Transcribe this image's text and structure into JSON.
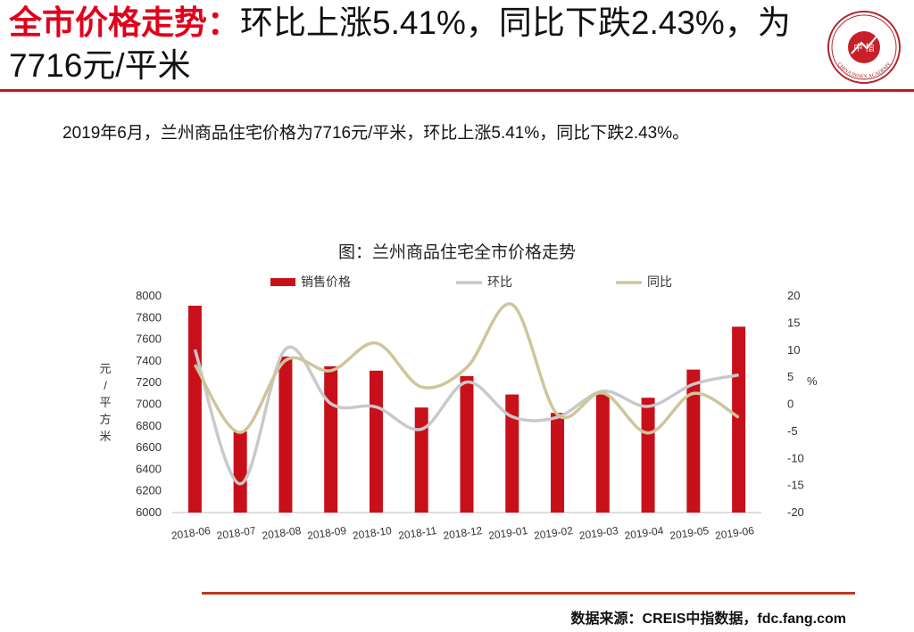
{
  "headline": {
    "red": "全市价格走势：",
    "black": "环比上涨5.41%，同比下跌2.43%，为7716元/平米"
  },
  "summary": "2019年6月，兰州商品住宅价格为7716元/平米，环比上涨5.41%，同比下跌2.43%。",
  "colors": {
    "accent": "#e0001b",
    "bar": "#c8101a",
    "mom_line": "#c9c9c9",
    "yoy_line": "#cfc59a",
    "rule": "#c4161c"
  },
  "chart_data": {
    "type": "bar",
    "title": "图：兰州商品住宅全市价格走势",
    "categories": [
      "2018-06",
      "2018-07",
      "2018-08",
      "2018-09",
      "2018-10",
      "2018-11",
      "2018-12",
      "2019-01",
      "2019-02",
      "2019-03",
      "2019-04",
      "2019-05",
      "2019-06"
    ],
    "series": [
      {
        "name": "销售价格",
        "kind": "bar",
        "axis": "left",
        "values": [
          7910,
          6750,
          7440,
          7350,
          7310,
          6970,
          7260,
          7090,
          6920,
          7090,
          7060,
          7320,
          7716
        ]
      },
      {
        "name": "环比",
        "kind": "line",
        "axis": "right",
        "values": [
          10.1,
          -14.7,
          10.2,
          0.1,
          -0.5,
          -4.6,
          4.1,
          -2.3,
          -2.4,
          2.4,
          -0.4,
          3.7,
          5.41
        ]
      },
      {
        "name": "同比",
        "kind": "line",
        "axis": "right",
        "values": [
          7.3,
          -5.2,
          8.1,
          6.2,
          11.3,
          3.2,
          6.8,
          18.4,
          -1.9,
          2.1,
          -5.3,
          2.0,
          -2.43
        ]
      }
    ],
    "ylabel": "元/平方米",
    "y2label": "%",
    "ylim": [
      6000,
      8000
    ],
    "y2lim": [
      -20,
      20
    ],
    "yticks": [
      "6000",
      "6200",
      "6400",
      "6600",
      "6800",
      "7000",
      "7200",
      "7400",
      "7600",
      "7800",
      "8000"
    ],
    "y2ticks": [
      "-20",
      "-15",
      "-10",
      "-5",
      "0",
      "5",
      "10",
      "15",
      "20"
    ],
    "grid": false,
    "legend": "top"
  },
  "source": "数据来源：CREIS中指数据，fdc.fang.com",
  "seal": {
    "center": "中 指",
    "ring": "CHINA INDEX ACADEMY"
  }
}
